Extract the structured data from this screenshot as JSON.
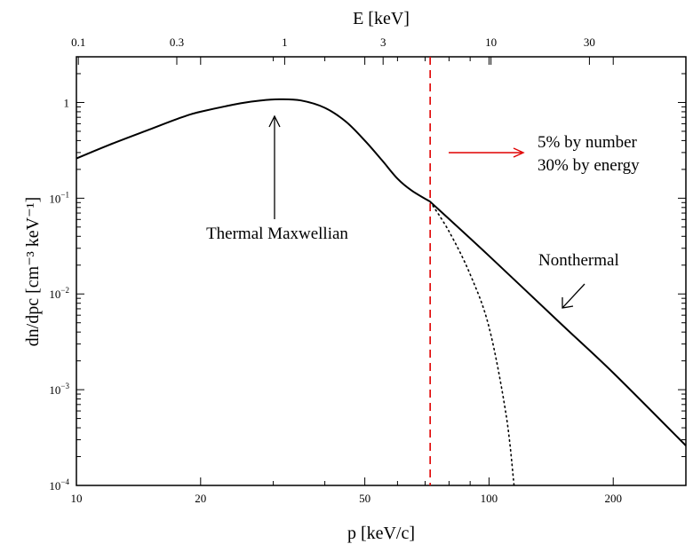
{
  "chart_data": {
    "type": "line",
    "title": "",
    "xlabel": "p [keV/c]",
    "x2label": "E [keV]",
    "ylabel": "dn/dpc [cm⁻³ keV⁻¹]",
    "x_scale": "log",
    "y_scale": "log",
    "xlim": [
      10,
      300
    ],
    "ylim": [
      0.0001,
      3
    ],
    "x_ticks": [
      10,
      20,
      50,
      100,
      200
    ],
    "x_tick_labels": [
      "10",
      "20",
      "50",
      "100",
      "200"
    ],
    "x2_ticks": [
      0.1,
      0.3,
      1,
      3,
      10,
      30
    ],
    "x2_tick_labels": [
      "0.1",
      "0.3",
      "1",
      "3",
      "10",
      "30"
    ],
    "y_ticks": [
      0.0001,
      0.001,
      0.01,
      0.1,
      1
    ],
    "y_tick_labels": [
      {
        "base": "10",
        "exp": "−4"
      },
      {
        "base": "10",
        "exp": "−3"
      },
      {
        "base": "10",
        "exp": "−2"
      },
      {
        "base": "10",
        "exp": "−1"
      },
      {
        "base": "",
        "exp": "",
        "plain": "1"
      }
    ],
    "grid": false,
    "series": [
      {
        "name": "Thermal Maxwellian",
        "style": "solid",
        "color": "#000000",
        "x": [
          10,
          12,
          15,
          18,
          20,
          25,
          28,
          31,
          35,
          40,
          45,
          50,
          55,
          60,
          65,
          72
        ],
        "y": [
          0.26,
          0.36,
          0.52,
          0.7,
          0.8,
          0.98,
          1.05,
          1.08,
          1.05,
          0.88,
          0.63,
          0.4,
          0.25,
          0.16,
          0.12,
          0.092
        ]
      },
      {
        "name": "Nonthermal",
        "style": "solid",
        "color": "#000000",
        "x": [
          72,
          100,
          150,
          200,
          300
        ],
        "y": [
          0.092,
          0.025,
          0.0048,
          0.0015,
          0.00026
        ]
      },
      {
        "name": "Maxwellian tail",
        "style": "dotted",
        "color": "#000000",
        "x": [
          72,
          80,
          90,
          100,
          110,
          115
        ],
        "y": [
          0.092,
          0.045,
          0.016,
          0.0045,
          0.00055,
          0.0001
        ]
      }
    ],
    "vline": {
      "x": 72,
      "color": "#e00000",
      "style": "dashed"
    },
    "annotations": {
      "thermal": "Thermal Maxwellian",
      "nonthermal": "Nonthermal",
      "fraction_line1": "5% by number",
      "fraction_line2": "30% by energy"
    },
    "colors": {
      "axis": "#000000",
      "accent": "#e00000"
    }
  }
}
